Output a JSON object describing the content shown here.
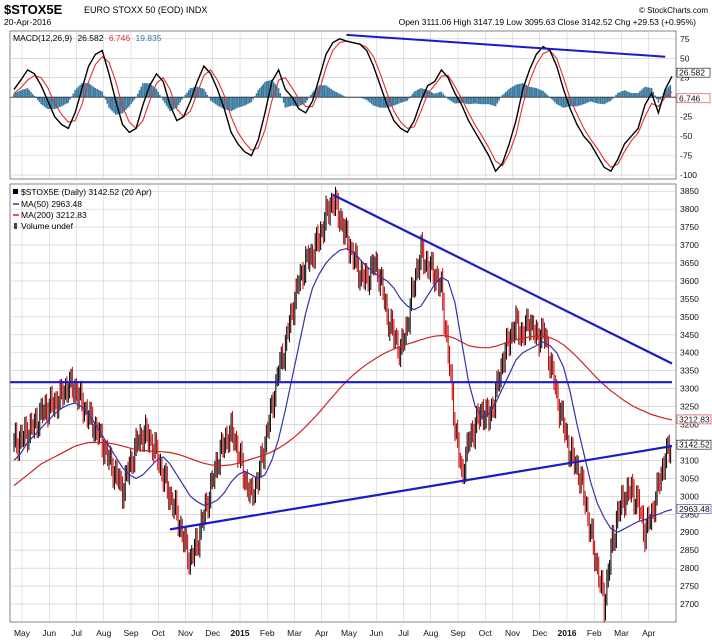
{
  "header": {
    "symbol": "$STOX5E",
    "name": "EURO STOXX 50 (EOD) INDX",
    "date": "20-Apr-2016",
    "ohlc_text": "Open 3111.06  High 3147.19  Low 3095.63  Close 3142.52  Chg +29.53 (+0.95%)",
    "brand": "© StockCharts.com"
  },
  "colors": {
    "price_up": "#000000",
    "price_down": "#cc0000",
    "ma50": "#3333aa",
    "ma200": "#cc2222",
    "macd": "#000000",
    "signal": "#e03030",
    "histogram": "#3a7aa0",
    "trendline": "#1a1acc",
    "grid": "#c8c8c8"
  },
  "chart_data": [
    {
      "type": "line",
      "panel": "MACD",
      "legend": "MACD(12,26,9)",
      "legend_values": [
        "26.582",
        "6.746",
        "19.835"
      ],
      "ylim": [
        -105,
        85
      ],
      "yticks": [
        75,
        50,
        25,
        0,
        -25,
        -50,
        -75,
        -100
      ],
      "last_value_labels": [
        "26.582",
        "6.746"
      ],
      "series": [
        {
          "role": "macd",
          "values": [
            10,
            22,
            35,
            30,
            15,
            -5,
            -25,
            -35,
            -40,
            -20,
            10,
            40,
            55,
            60,
            30,
            -5,
            -35,
            -45,
            -40,
            -10,
            15,
            30,
            20,
            -10,
            -30,
            -25,
            -5,
            20,
            40,
            30,
            10,
            -15,
            -45,
            -60,
            -70,
            -75,
            -55,
            -20,
            20,
            35,
            10,
            0,
            -15,
            -20,
            -5,
            25,
            55,
            70,
            75,
            72,
            70,
            68,
            60,
            40,
            15,
            -10,
            -30,
            -40,
            -45,
            -30,
            -5,
            15,
            20,
            35,
            25,
            5,
            -10,
            -30,
            -45,
            -60,
            -75,
            -95,
            -85,
            -60,
            -30,
            10,
            35,
            55,
            65,
            60,
            40,
            10,
            -15,
            -35,
            -50,
            -60,
            -75,
            -90,
            -95,
            -80,
            -60,
            -50,
            -40,
            -10,
            5,
            -20,
            10,
            27
          ]
        },
        {
          "role": "signal",
          "values": [
            5,
            12,
            22,
            28,
            25,
            12,
            -8,
            -22,
            -32,
            -30,
            -10,
            20,
            42,
            52,
            45,
            20,
            -12,
            -32,
            -40,
            -30,
            -5,
            18,
            25,
            10,
            -15,
            -25,
            -18,
            5,
            28,
            35,
            22,
            2,
            -25,
            -45,
            -58,
            -68,
            -65,
            -42,
            -5,
            22,
            25,
            12,
            -2,
            -12,
            -12,
            8,
            38,
            60,
            70,
            72,
            70,
            68,
            64,
            52,
            30,
            5,
            -18,
            -32,
            -40,
            -38,
            -18,
            5,
            15,
            27,
            28,
            14,
            -2,
            -20,
            -36,
            -50,
            -65,
            -82,
            -88,
            -72,
            -48,
            -10,
            20,
            42,
            56,
            60,
            50,
            25,
            -2,
            -22,
            -40,
            -54,
            -66,
            -80,
            -90,
            -86,
            -70,
            -56,
            -46,
            -25,
            -8,
            -12,
            0,
            7
          ]
        }
      ],
      "annotations": [
        {
          "type": "trendline",
          "from": [
            49,
            80
          ],
          "to": [
            96,
            52
          ]
        }
      ]
    },
    {
      "type": "line",
      "panel": "price",
      "legend": [
        {
          "text": "$STOX5E (Daily) 3142.52 (20 Apr)"
        },
        {
          "text": "MA(50) 2963.48"
        },
        {
          "text": "MA(200) 3212.83"
        },
        {
          "text": "Volume undef"
        }
      ],
      "xlabel_ticks": [
        "May",
        "Jun",
        "Jul",
        "Aug",
        "Sep",
        "Oct",
        "Nov",
        "Dec",
        "2015",
        "Feb",
        "Mar",
        "Apr",
        "May",
        "Jun",
        "Jul",
        "Aug",
        "Sep",
        "Oct",
        "Nov",
        "Dec",
        "2016",
        "Feb",
        "Mar",
        "Apr"
      ],
      "ylim": [
        2650,
        3870
      ],
      "yticks": [
        3850,
        3800,
        3750,
        3700,
        3650,
        3600,
        3550,
        3500,
        3450,
        3400,
        3350,
        3300,
        3250,
        3200,
        3150,
        3100,
        3050,
        3000,
        2950,
        2900,
        2850,
        2800,
        2750,
        2700
      ],
      "last_value_labels": [
        "3212.83",
        "3142.52",
        "2963.48"
      ],
      "series": [
        {
          "role": "price",
          "values": [
            3150,
            3160,
            3180,
            3200,
            3230,
            3250,
            3260,
            3280,
            3310,
            3300,
            3260,
            3220,
            3190,
            3150,
            3100,
            3060,
            3020,
            3080,
            3140,
            3180,
            3160,
            3120,
            3060,
            3000,
            2950,
            2880,
            2820,
            2870,
            2950,
            3020,
            3100,
            3150,
            3180,
            3130,
            3050,
            3000,
            3050,
            3150,
            3250,
            3350,
            3420,
            3520,
            3600,
            3650,
            3680,
            3720,
            3780,
            3830,
            3780,
            3720,
            3670,
            3620,
            3600,
            3650,
            3610,
            3500,
            3450,
            3400,
            3480,
            3600,
            3680,
            3640,
            3620,
            3580,
            3400,
            3200,
            3060,
            3150,
            3200,
            3240,
            3220,
            3280,
            3380,
            3440,
            3480,
            3450,
            3490,
            3440,
            3460,
            3380,
            3280,
            3200,
            3120,
            3080,
            3010,
            2900,
            2800,
            2700,
            2850,
            2950,
            3000,
            3020,
            2980,
            2900,
            2950,
            3030,
            3110,
            3142.52
          ]
        },
        {
          "role": "ma50",
          "values": [
            3100,
            3120,
            3150,
            3170,
            3190,
            3210,
            3230,
            3245,
            3255,
            3260,
            3250,
            3230,
            3200,
            3170,
            3140,
            3110,
            3080,
            3060,
            3050,
            3060,
            3080,
            3100,
            3110,
            3090,
            3060,
            3030,
            3000,
            2985,
            2975,
            2980,
            2990,
            3010,
            3040,
            3060,
            3070,
            3060,
            3050,
            3060,
            3100,
            3160,
            3240,
            3330,
            3420,
            3510,
            3580,
            3620,
            3650,
            3670,
            3685,
            3690,
            3680,
            3660,
            3640,
            3625,
            3610,
            3600,
            3580,
            3550,
            3530,
            3520,
            3530,
            3560,
            3590,
            3610,
            3600,
            3540,
            3430,
            3320,
            3250,
            3220,
            3230,
            3260,
            3300,
            3340,
            3380,
            3400,
            3410,
            3420,
            3430,
            3420,
            3400,
            3360,
            3290,
            3200,
            3120,
            3040,
            2980,
            2940,
            2910,
            2900,
            2910,
            2920,
            2930,
            2935,
            2945,
            2950,
            2958,
            2963.48
          ]
        },
        {
          "role": "ma200",
          "values": [
            3030,
            3045,
            3060,
            3075,
            3090,
            3100,
            3110,
            3120,
            3130,
            3140,
            3145,
            3150,
            3150,
            3150,
            3148,
            3145,
            3140,
            3135,
            3130,
            3128,
            3126,
            3125,
            3124,
            3122,
            3118,
            3112,
            3105,
            3098,
            3092,
            3088,
            3086,
            3086,
            3088,
            3092,
            3098,
            3104,
            3110,
            3116,
            3124,
            3134,
            3146,
            3160,
            3176,
            3194,
            3214,
            3234,
            3256,
            3278,
            3300,
            3320,
            3338,
            3354,
            3368,
            3380,
            3392,
            3402,
            3410,
            3418,
            3424,
            3430,
            3436,
            3442,
            3446,
            3448,
            3446,
            3440,
            3430,
            3420,
            3416,
            3414,
            3414,
            3418,
            3424,
            3430,
            3436,
            3440,
            3444,
            3446,
            3446,
            3442,
            3434,
            3422,
            3406,
            3388,
            3368,
            3348,
            3328,
            3310,
            3294,
            3280,
            3266,
            3254,
            3244,
            3236,
            3228,
            3222,
            3217,
            3212.83
          ]
        }
      ],
      "annotations": [
        {
          "type": "trendline",
          "from": [
            47,
            3840
          ],
          "to": [
            97,
            3370
          ]
        },
        {
          "type": "trendline",
          "from": [
            -1,
            3318
          ],
          "to": [
            97,
            3318
          ]
        },
        {
          "type": "trendline",
          "from": [
            23,
            2908
          ],
          "to": [
            97,
            3140
          ]
        }
      ]
    }
  ]
}
